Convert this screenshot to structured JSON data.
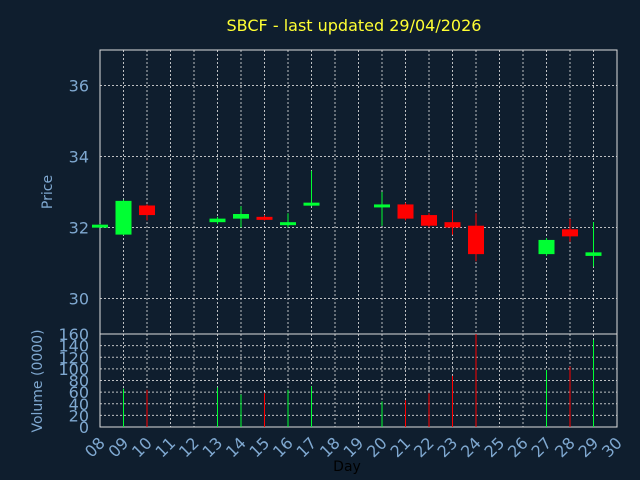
{
  "chart_title": "SBCF - last updated 29/04/2026",
  "chart_data": {
    "type": "candlestick",
    "title": "SBCF - last updated 29/04/2026",
    "xlabel": "Day",
    "x_tick_labels": [
      "08",
      "09",
      "10",
      "11",
      "12",
      "13",
      "14",
      "15",
      "16",
      "17",
      "18",
      "19",
      "20",
      "21",
      "22",
      "23",
      "24",
      "25",
      "26",
      "27",
      "28",
      "29",
      "30"
    ],
    "price": {
      "ylabel": "Price",
      "ylim": [
        29.0,
        37.0
      ],
      "yticks": [
        30,
        32,
        34,
        36
      ],
      "grid": true,
      "candles": [
        {
          "day": "08",
          "open": 32.05,
          "close": 32.08,
          "high": 32.1,
          "low": 32.0
        },
        {
          "day": "09",
          "open": 31.8,
          "close": 32.75,
          "high": 32.78,
          "low": 31.78
        },
        {
          "day": "10",
          "open": 32.62,
          "close": 32.35,
          "high": 32.65,
          "low": 32.2
        },
        {
          "day": "13",
          "open": 32.15,
          "close": 32.25,
          "high": 32.3,
          "low": 32.1
        },
        {
          "day": "14",
          "open": 32.25,
          "close": 32.38,
          "high": 32.6,
          "low": 32.0
        },
        {
          "day": "15",
          "open": 32.3,
          "close": 32.25,
          "high": 32.35,
          "low": 32.2
        },
        {
          "day": "16",
          "open": 32.1,
          "close": 32.15,
          "high": 32.4,
          "low": 32.0
        },
        {
          "day": "17",
          "open": 32.65,
          "close": 32.7,
          "high": 33.6,
          "low": 32.6
        },
        {
          "day": "20",
          "open": 32.62,
          "close": 32.65,
          "high": 33.0,
          "low": 32.05
        },
        {
          "day": "21",
          "open": 32.65,
          "close": 32.25,
          "high": 32.7,
          "low": 32.2
        },
        {
          "day": "22",
          "open": 32.35,
          "close": 32.05,
          "high": 32.4,
          "low": 32.0
        },
        {
          "day": "23",
          "open": 32.15,
          "close": 32.0,
          "high": 32.5,
          "low": 31.8
        },
        {
          "day": "24",
          "open": 32.05,
          "close": 31.25,
          "high": 32.4,
          "low": 31.05
        },
        {
          "day": "27",
          "open": 31.25,
          "close": 31.65,
          "high": 31.7,
          "low": 31.2
        },
        {
          "day": "28",
          "open": 31.95,
          "close": 31.75,
          "high": 32.25,
          "low": 31.6
        },
        {
          "day": "29",
          "open": 31.2,
          "close": 31.3,
          "high": 32.15,
          "low": 30.9
        }
      ]
    },
    "volume": {
      "ylabel": "Volume (0000)",
      "ylim": [
        0,
        160
      ],
      "yticks": [
        0,
        20,
        40,
        60,
        80,
        100,
        120,
        140,
        160
      ],
      "grid": true,
      "bars": [
        {
          "day": "09",
          "value": 66,
          "up": true
        },
        {
          "day": "10",
          "value": 64,
          "up": false
        },
        {
          "day": "13",
          "value": 68,
          "up": true
        },
        {
          "day": "14",
          "value": 56,
          "up": true
        },
        {
          "day": "15",
          "value": 58,
          "up": false
        },
        {
          "day": "16",
          "value": 64,
          "up": true
        },
        {
          "day": "17",
          "value": 70,
          "up": true
        },
        {
          "day": "20",
          "value": 44,
          "up": true
        },
        {
          "day": "21",
          "value": 46,
          "up": false
        },
        {
          "day": "22",
          "value": 58,
          "up": false
        },
        {
          "day": "23",
          "value": 88,
          "up": false
        },
        {
          "day": "24",
          "value": 160,
          "up": false
        },
        {
          "day": "27",
          "value": 98,
          "up": true
        },
        {
          "day": "28",
          "value": 104,
          "up": false
        },
        {
          "day": "29",
          "value": 150,
          "up": true
        }
      ]
    },
    "colors": {
      "background": "#0f1e2e",
      "up": "#00ff33",
      "down": "#ff0000",
      "title": "#ffff33",
      "axis_text": "#7fa8d0",
      "grid": "#dddddd"
    }
  }
}
